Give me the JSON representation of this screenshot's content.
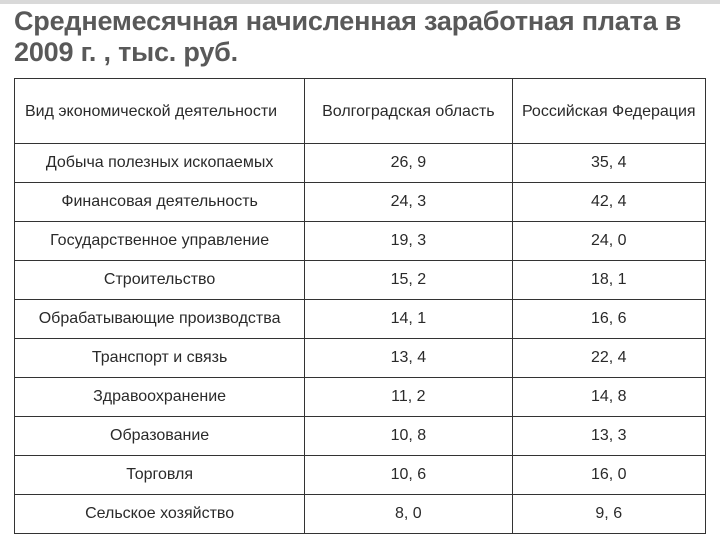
{
  "title": "Среднемесячная начисленная заработная плата в 2009 г. , тыс. руб.",
  "table": {
    "columns": [
      "Вид экономической деятельности",
      "Волгоградская область",
      "Российская Федерация"
    ],
    "rows": [
      {
        "activity": "Добыча полезных ископаемых",
        "volgograd": "26, 9",
        "russia": "35, 4"
      },
      {
        "activity": "Финансовая деятельность",
        "volgograd": "24, 3",
        "russia": "42, 4"
      },
      {
        "activity": "Государственное управление",
        "volgograd": "19, 3",
        "russia": "24, 0"
      },
      {
        "activity": "Строительство",
        "volgograd": "15, 2",
        "russia": "18, 1"
      },
      {
        "activity": "Обрабатывающие производства",
        "volgograd": "14, 1",
        "russia": "16, 6"
      },
      {
        "activity": "Транспорт и связь",
        "volgograd": "13, 4",
        "russia": "22, 4"
      },
      {
        "activity": "Здравоохранение",
        "volgograd": "11, 2",
        "russia": "14, 8"
      },
      {
        "activity": "Образование",
        "volgograd": "10, 8",
        "russia": "13, 3"
      },
      {
        "activity": "Торговля",
        "volgograd": "10, 6",
        "russia": "16, 0"
      },
      {
        "activity": "Сельское хозяйство",
        "volgograd": "8, 0",
        "russia": "9, 6"
      }
    ],
    "border_color": "#333333",
    "header_fontsize": 16,
    "cell_fontsize": 16
  },
  "colors": {
    "title": "#595959",
    "text": "#2a2a2a",
    "background": "#ffffff",
    "top_rule": "#d9d9d9"
  }
}
